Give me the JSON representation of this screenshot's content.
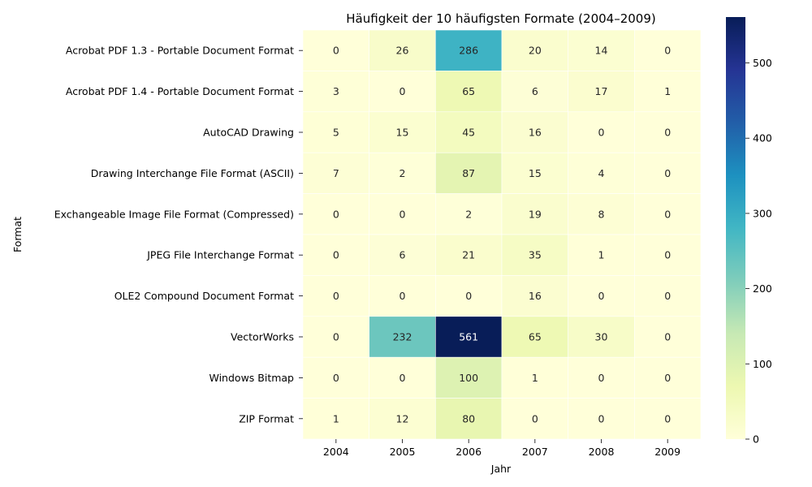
{
  "chart_data": {
    "type": "heatmap",
    "title": "Häufigkeit der 10 häufigsten Formate (2004–2009)",
    "xlabel": "Jahr",
    "ylabel": "Format",
    "x_categories": [
      "2004",
      "2005",
      "2006",
      "2007",
      "2008",
      "2009"
    ],
    "y_categories": [
      "Acrobat PDF 1.3 - Portable Document Format",
      "Acrobat PDF 1.4 - Portable Document Format",
      "AutoCAD Drawing",
      "Drawing Interchange File Format (ASCII)",
      "Exchangeable Image File Format (Compressed)",
      "JPEG File Interchange Format",
      "OLE2 Compound Document Format",
      "VectorWorks",
      "Windows Bitmap",
      "ZIP Format"
    ],
    "values": [
      [
        0,
        26,
        286,
        20,
        14,
        0
      ],
      [
        3,
        0,
        65,
        6,
        17,
        1
      ],
      [
        5,
        15,
        45,
        16,
        0,
        0
      ],
      [
        7,
        2,
        87,
        15,
        4,
        0
      ],
      [
        0,
        0,
        2,
        19,
        8,
        0
      ],
      [
        0,
        6,
        21,
        35,
        1,
        0
      ],
      [
        0,
        0,
        0,
        16,
        0,
        0
      ],
      [
        0,
        232,
        561,
        65,
        30,
        0
      ],
      [
        0,
        0,
        100,
        1,
        0,
        0
      ],
      [
        1,
        12,
        80,
        0,
        0,
        0
      ]
    ],
    "colormap": "YlGnBu",
    "colorbar": {
      "range": [
        0,
        561
      ],
      "ticks": [
        0,
        100,
        200,
        300,
        400,
        500
      ]
    }
  }
}
